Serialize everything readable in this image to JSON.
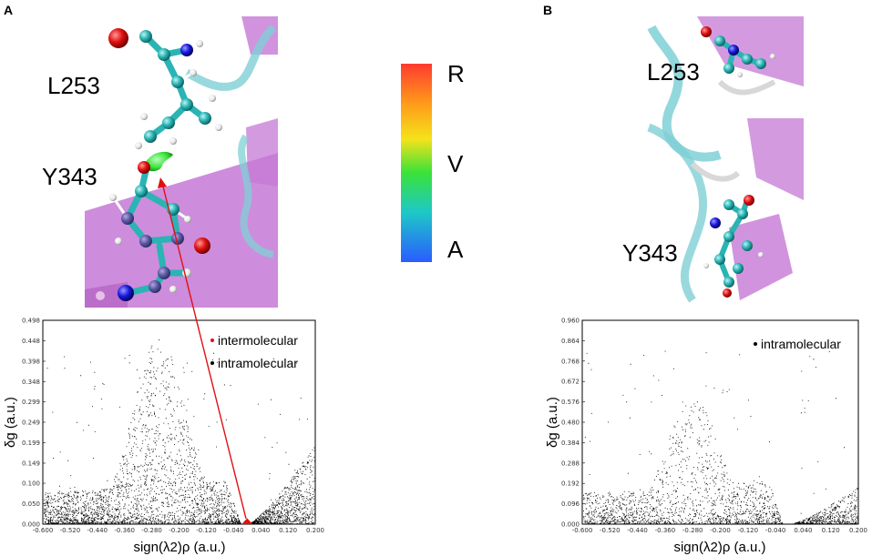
{
  "panels": {
    "a": {
      "letter": "A",
      "residue_top": "L253",
      "residue_bottom": "Y343"
    },
    "b": {
      "letter": "B",
      "residue_top": "L253",
      "residue_bottom": "Y343"
    }
  },
  "color_scale": {
    "labels": [
      "R",
      "V",
      "A"
    ],
    "colors": [
      "#ff3b30",
      "#ff9a1a",
      "#f5e21a",
      "#3ae23a",
      "#1ec8c8",
      "#2a5cff"
    ]
  },
  "molecule_colors": {
    "carbon": "#2ab4b4",
    "oxygen": "#e01010",
    "nitrogen": "#1a1ae0",
    "hydrogen": "#f2f2f2",
    "ribbon": "#7fd0d6",
    "helix": "#c678d6",
    "isosurface": "#38e038"
  },
  "chart_data": [
    {
      "type": "scatter",
      "xlabel": "sign(λ2)ρ (a.u.)",
      "ylabel": "δg (a.u.)",
      "xlim": [
        -0.6,
        0.2
      ],
      "ylim": [
        0,
        0.498
      ],
      "x_ticks": [
        "-0.600",
        "-0.520",
        "-0.440",
        "-0.360",
        "-0.280",
        "-0.200",
        "-0.120",
        "-0.040",
        "0.040",
        "0.120",
        "0.200"
      ],
      "y_ticks": [
        "0.000",
        "0.050",
        "0.100",
        "0.149",
        "0.199",
        "0.249",
        "0.299",
        "0.348",
        "0.398",
        "0.448",
        "0.498"
      ],
      "legend": [
        {
          "name": "intermolecular",
          "color": "#e01010"
        },
        {
          "name": "intramolecular",
          "color": "#000000"
        }
      ],
      "distribution": {
        "spike_x": -0.26,
        "spike_max": 0.46,
        "right_cone_min_x": 0.0,
        "right_cone_max_x": 0.2,
        "right_cone_max_y": 0.2,
        "intermolecular_x": 0.0,
        "intermolecular_y": 0.01
      }
    },
    {
      "type": "scatter",
      "xlabel": "sign(λ2)ρ (a.u.)",
      "ylabel": "δg (a.u.)",
      "xlim": [
        -0.6,
        0.2
      ],
      "ylim": [
        0,
        0.96
      ],
      "x_ticks": [
        "-0.600",
        "-0.520",
        "-0.440",
        "-0.360",
        "-0.280",
        "-0.200",
        "-0.120",
        "-0.040",
        "0.040",
        "0.120",
        "0.200"
      ],
      "y_ticks": [
        "0.000",
        "0.096",
        "0.192",
        "0.288",
        "0.384",
        "0.480",
        "0.576",
        "0.672",
        "0.768",
        "0.864",
        "0.960"
      ],
      "legend": [
        {
          "name": "intramolecular",
          "color": "#000000"
        }
      ],
      "distribution": {
        "spike_x": -0.28,
        "spike_max": 0.6,
        "right_cone_min_x": 0.0,
        "right_cone_max_x": 0.2,
        "right_cone_max_y": 0.18
      }
    }
  ]
}
